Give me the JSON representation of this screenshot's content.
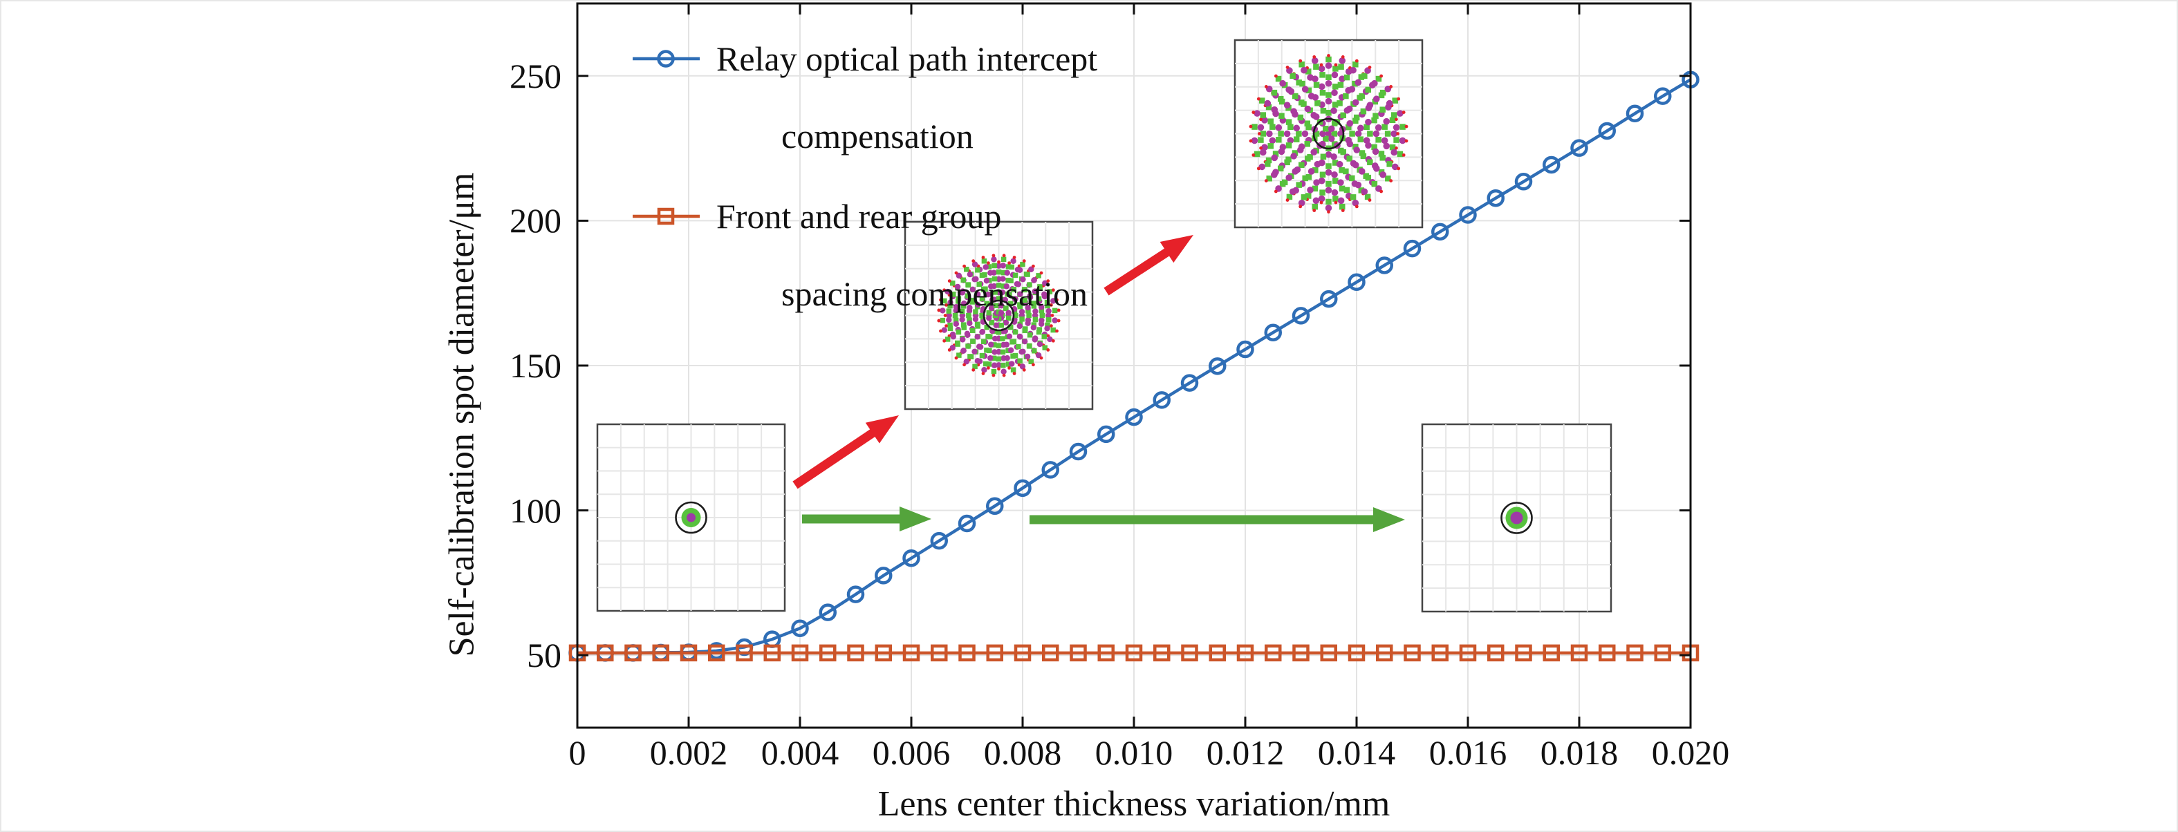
{
  "figure": {
    "description": "Line chart comparing self-calibration spot diameter versus lens center thickness variation for two compensation methods, with four spot-diagram insets and annotation arrows"
  },
  "style": {
    "accent_blue": "#2f6eb6",
    "accent_orange": "#cc5529",
    "arrow_red": "#e62129",
    "arrow_green": "#54a43c",
    "spot_green": "#57c13d",
    "spot_purple": "#9e39a8",
    "spot_magenta": "#aa3a9e",
    "grid_color": "#e3e3e3",
    "spine_color": "#111111"
  },
  "axes": {
    "x_label": "Lens center thickness variation/mm",
    "y_label": "Self-calibration spot diameter/μm",
    "x_ticks": [
      "0",
      "0.002",
      "0.004",
      "0.006",
      "0.008",
      "0.010",
      "0.012",
      "0.014",
      "0.016",
      "0.018",
      "0.020"
    ],
    "y_ticks": [
      "50",
      "100",
      "150",
      "200",
      "250"
    ]
  },
  "legend": {
    "items": [
      {
        "line1": "Relay optical path intercept",
        "line2": "compensation",
        "marker": "circle",
        "color": "#2f6eb6"
      },
      {
        "line1": "Front and rear group",
        "line2": "spacing compensation",
        "marker": "square",
        "color": "#cc5529"
      }
    ]
  },
  "chart_data": {
    "type": "line",
    "title": "",
    "xlabel": "Lens center thickness variation/mm",
    "ylabel": "Self-calibration spot diameter/μm",
    "xlim": [
      0,
      0.02
    ],
    "ylim": [
      25,
      275
    ],
    "grid": true,
    "legend_position": "upper-left-inside",
    "x_tick_values": [
      0,
      0.002,
      0.004,
      0.006,
      0.008,
      0.01,
      0.012,
      0.014,
      0.016,
      0.018,
      0.02
    ],
    "y_tick_values": [
      50,
      100,
      150,
      200,
      250
    ],
    "x": [
      0,
      0.0005,
      0.001,
      0.0015,
      0.002,
      0.0025,
      0.003,
      0.0035,
      0.004,
      0.0045,
      0.005,
      0.0055,
      0.006,
      0.0065,
      0.007,
      0.0075,
      0.008,
      0.0085,
      0.009,
      0.0095,
      0.01,
      0.0105,
      0.011,
      0.0115,
      0.012,
      0.0125,
      0.013,
      0.0135,
      0.014,
      0.0145,
      0.015,
      0.0155,
      0.016,
      0.0165,
      0.017,
      0.0175,
      0.018,
      0.0185,
      0.019,
      0.0195,
      0.02
    ],
    "series": [
      {
        "name": "Relay optical path intercept compensation",
        "marker": "circle",
        "color": "#2f6eb6",
        "values": [
          50.8,
          50.8,
          50.8,
          50.9,
          51.0,
          51.5,
          52.8,
          55.5,
          59.3,
          64.8,
          71.0,
          77.5,
          83.5,
          89.5,
          95.5,
          101.5,
          107.7,
          114.0,
          120.3,
          126.3,
          132.2,
          138.1,
          144.0,
          149.8,
          155.6,
          161.4,
          167.2,
          173.0,
          178.8,
          184.6,
          190.4,
          196.2,
          202.0,
          207.8,
          213.5,
          219.3,
          225.1,
          231.0,
          237.0,
          243.0,
          248.7
        ]
      },
      {
        "name": "Front and rear group spacing compensation",
        "marker": "square",
        "color": "#cc5529",
        "values": [
          50.8,
          50.8,
          50.8,
          50.8,
          50.8,
          50.8,
          50.8,
          50.8,
          50.8,
          50.8,
          50.8,
          50.8,
          50.8,
          50.8,
          50.8,
          50.8,
          50.8,
          50.8,
          50.8,
          50.8,
          50.8,
          50.8,
          50.8,
          50.8,
          50.8,
          50.8,
          50.8,
          50.8,
          50.8,
          50.8,
          50.8,
          50.8,
          50.8,
          50.8,
          50.8,
          50.8,
          50.8,
          50.8,
          50.8,
          50.8,
          50.8
        ]
      }
    ],
    "insets": [
      {
        "id": "inset-lower-left",
        "pattern": "compact-spot",
        "description": "small focused spot on grid"
      },
      {
        "id": "inset-middle",
        "pattern": "radial-spread",
        "description": "medium dispersed spot diagram on grid"
      },
      {
        "id": "inset-upper-right",
        "pattern": "radial-spread",
        "description": "large dispersed spot diagram on grid"
      },
      {
        "id": "inset-lower-right",
        "pattern": "compact-spot",
        "description": "small focused spot on grid"
      }
    ],
    "arrows": [
      {
        "id": "arrow-red-1",
        "color": "red",
        "from": "inset-lower-left",
        "to": "inset-middle"
      },
      {
        "id": "arrow-red-2",
        "color": "red",
        "from": "inset-middle",
        "to": "inset-upper-right"
      },
      {
        "id": "arrow-green-1",
        "color": "green",
        "from": "inset-lower-left",
        "to": "inset-lower-right"
      },
      {
        "id": "arrow-green-2",
        "color": "green",
        "from": "inset-lower-left",
        "to": "inset-lower-right"
      }
    ]
  }
}
